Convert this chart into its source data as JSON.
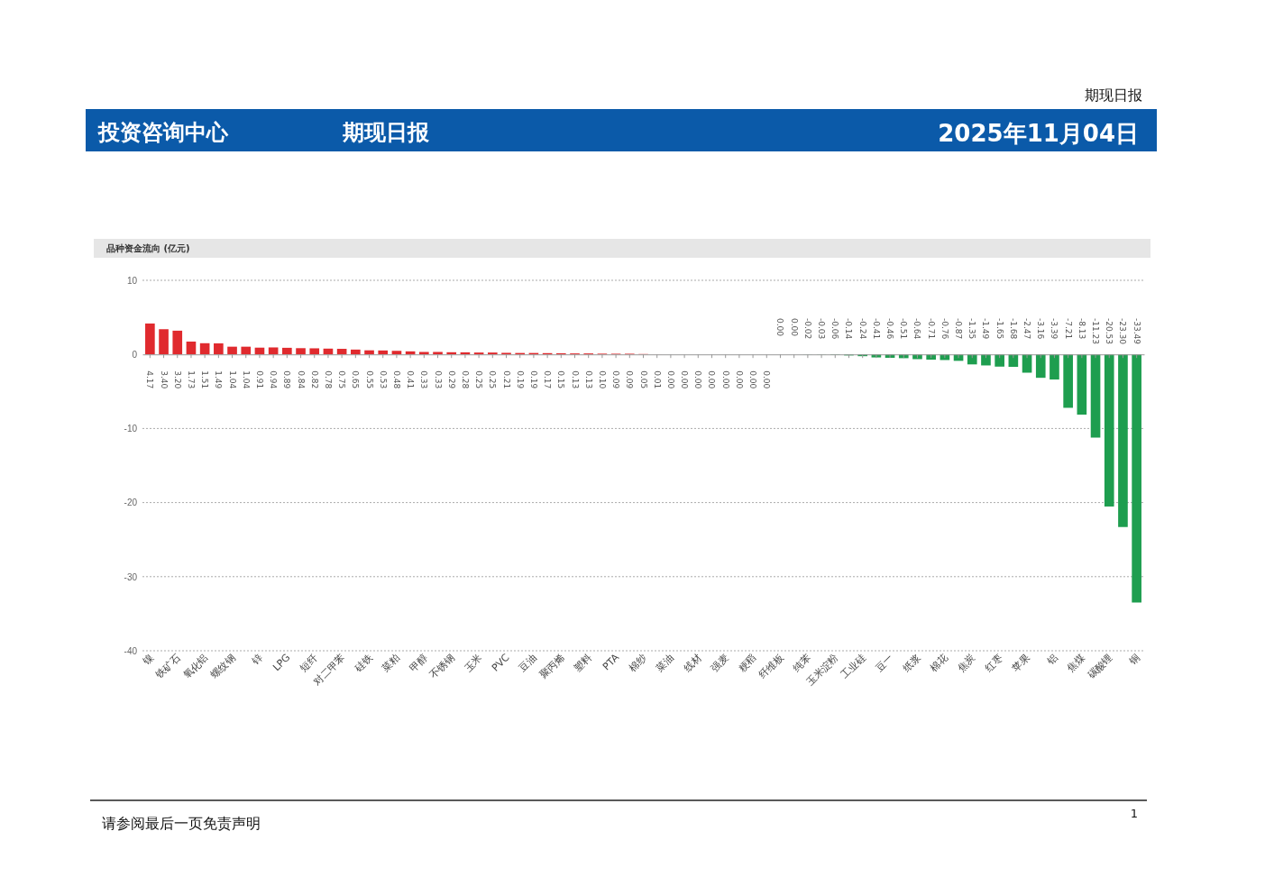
{
  "chart_data": {
    "type": "bar",
    "title": "品种资金流向 (亿元)",
    "annotations": [
      "期现日报",
      "投资咨询中心",
      "期现日报",
      "2025年11月04日",
      "请参阅最后一页免责声明",
      "1"
    ],
    "categories": [
      "镍",
      null,
      "铁矿石",
      null,
      "氧化铝",
      null,
      "螺纹钢",
      null,
      "锌",
      null,
      "LPG",
      null,
      "短纤",
      null,
      "对二甲苯",
      null,
      "硅铁",
      null,
      "菜粕",
      null,
      "甲醇",
      null,
      "不锈钢",
      null,
      "玉米",
      null,
      "PVC",
      null,
      "豆油",
      null,
      "聚丙烯",
      null,
      "塑料",
      null,
      "PTA",
      null,
      "棉纱",
      null,
      "菜油",
      null,
      "线材",
      null,
      "强麦",
      null,
      "粳稻",
      null,
      "纤维板",
      null,
      "纯苯",
      null,
      "玉米淀粉",
      null,
      "工业硅",
      null,
      "豆一",
      null,
      "纸浆",
      null,
      "棉花",
      null,
      "焦炭",
      null,
      "红枣",
      null,
      "苹果",
      null,
      "铝",
      null,
      "焦煤",
      null,
      "碳酸锂",
      null,
      "铜"
    ],
    "values": [
      4.17,
      3.4,
      3.2,
      1.73,
      1.51,
      1.49,
      1.04,
      1.04,
      0.91,
      0.94,
      0.89,
      0.84,
      0.82,
      0.78,
      0.75,
      0.65,
      0.55,
      0.53,
      0.48,
      0.41,
      0.33,
      0.33,
      0.29,
      0.28,
      0.25,
      0.25,
      0.21,
      0.19,
      0.19,
      0.17,
      0.15,
      0.13,
      0.13,
      0.1,
      0.09,
      0.09,
      0.05,
      0.01,
      0.0,
      0.0,
      0.0,
      0.0,
      0.0,
      0.0,
      0.0,
      0.0,
      -0.0,
      -0.0,
      -0.02,
      -0.03,
      -0.06,
      -0.14,
      -0.24,
      -0.41,
      -0.46,
      -0.51,
      -0.64,
      -0.71,
      -0.76,
      -0.87,
      -1.35,
      -1.49,
      -1.65,
      -1.68,
      -2.47,
      -3.16,
      -3.39,
      -7.21,
      -8.13,
      -11.23,
      -20.53,
      -23.3,
      -33.49
    ],
    "colors": [
      "#e02a2e",
      "#e02a2e",
      "#e02a2e",
      "#e02a2e",
      "#e02a2e",
      "#e02a2e",
      "#e02a2e",
      "#e02a2e",
      "#e02a2e",
      "#e02a2e",
      "#e02a2e",
      "#e02a2e",
      "#e02a2e",
      "#e02a2e",
      "#e02a2e",
      "#e02a2e",
      "#e02a2e",
      "#e02a2e",
      "#e02a2e",
      "#e02a2e",
      "#e02a2e",
      "#e02a2e",
      "#e02a2e",
      "#e02a2e",
      "#e02a2e",
      "#e02a2e",
      "#e02a2e",
      "#e02a2e",
      "#e02a2e",
      "#e02a2e",
      "#e02a2e",
      "#e02a2e",
      "#e02a2e",
      "#e02a2e",
      "#e02a2e",
      "#e02a2e",
      "#e02a2e",
      "#e02a2e",
      "#e02a2e",
      "#e02a2e",
      "#e02a2e",
      "#e02a2e",
      "#e02a2e",
      "#e02a2e",
      "#e02a2e",
      "#e02a2e",
      "#1e9e4f",
      "#1e9e4f",
      "#1e9e4f",
      "#1e9e4f",
      "#1e9e4f",
      "#1e9e4f",
      "#1e9e4f",
      "#1e9e4f",
      "#1e9e4f",
      "#1e9e4f",
      "#1e9e4f",
      "#1e9e4f",
      "#1e9e4f",
      "#1e9e4f",
      "#1e9e4f",
      "#1e9e4f",
      "#1e9e4f",
      "#1e9e4f",
      "#1e9e4f",
      "#1e9e4f",
      "#1e9e4f",
      "#1e9e4f",
      "#1e9e4f",
      "#1e9e4f",
      "#1e9e4f",
      "#1e9e4f",
      "#1e9e4f"
    ],
    "value_labels": [
      "4.17",
      "3.40",
      "3.20",
      "1.73",
      "1.51",
      "1.49",
      "1.04",
      "1.04",
      "0.91",
      "0.94",
      "0.89",
      "0.84",
      "0.82",
      "0.78",
      "0.75",
      "0.65",
      "0.55",
      "0.53",
      "0.48",
      "0.41",
      "0.33",
      "0.33",
      "0.29",
      "0.28",
      "0.25",
      "0.25",
      "0.21",
      "0.19",
      "0.19",
      "0.17",
      "0.15",
      "0.13",
      "0.13",
      "0.10",
      "0.09",
      "0.09",
      "0.05",
      "0.01",
      "0.00",
      "0.00",
      "0.00",
      "0.00",
      "0.00",
      "0.00",
      "0.00",
      "0.00",
      "0.00",
      "0.00",
      "-0.02",
      "-0.03",
      "-0.06",
      "-0.14",
      "-0.24",
      "-0.41",
      "-0.46",
      "-0.51",
      "-0.64",
      "-0.71",
      "-0.76",
      "-0.87",
      "-1.35",
      "-1.49",
      "-1.65",
      "-1.68",
      "-2.47",
      "-3.16",
      "-3.39",
      "-7.21",
      "-8.13",
      "-11.23",
      "-20.53",
      "-23.30",
      "-33.49"
    ],
    "ylim": [
      -40,
      10
    ],
    "yticks": [
      -40,
      -30,
      -20,
      -10,
      0,
      10
    ],
    "grid": "y"
  }
}
